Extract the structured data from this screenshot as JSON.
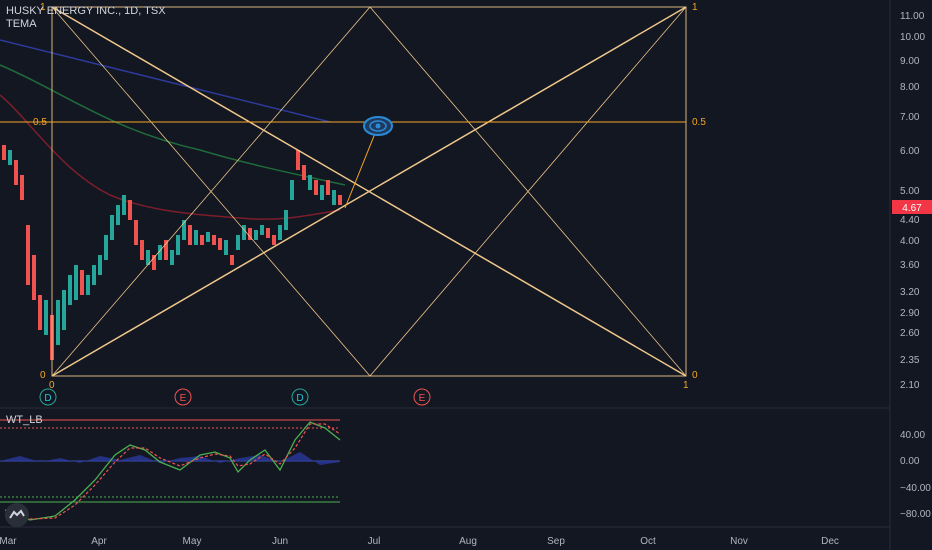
{
  "header": {
    "symbol_title": "HUSKY ENERGY INC., 1D, TSX",
    "indicator": "TEMA"
  },
  "oscillator": {
    "name": "WT_LB"
  },
  "price_axis": {
    "ticks": [
      "11.00",
      "10.00",
      "9.00",
      "8.00",
      "7.00",
      "6.00",
      "5.00",
      "4.40",
      "4.00",
      "3.60",
      "3.20",
      "2.90",
      "2.60",
      "2.35",
      "2.10"
    ],
    "last_price": "4.67",
    "last_price_color": "#f23645"
  },
  "osc_axis": {
    "ticks": [
      "40.00",
      "0.00",
      "−40.00",
      "−80.00"
    ]
  },
  "time_axis": {
    "labels": [
      "Mar",
      "Apr",
      "May",
      "Jun",
      "Jul",
      "Aug",
      "Sep",
      "Oct",
      "Nov",
      "Dec"
    ]
  },
  "gann_labels": {
    "top_left": "1",
    "top_right": "1",
    "mid_left": "0.5",
    "mid_right": "0.5",
    "bottom_left": "0",
    "bottom_right": "0",
    "bottom_left_axis": "0",
    "bottom_right_axis": "1"
  },
  "event_markers": [
    "D",
    "E",
    "D",
    "E"
  ],
  "colors": {
    "background": "#131722",
    "up_candle": "#26a69a",
    "down_candle": "#ef5350",
    "gann_lines": "#f0c78a",
    "gann_label": "#f5a623",
    "wt_green": "#4caf50",
    "wt_red": "#ef5350"
  },
  "icons": [
    "eye-icon",
    "tradingview-logo-icon"
  ]
}
